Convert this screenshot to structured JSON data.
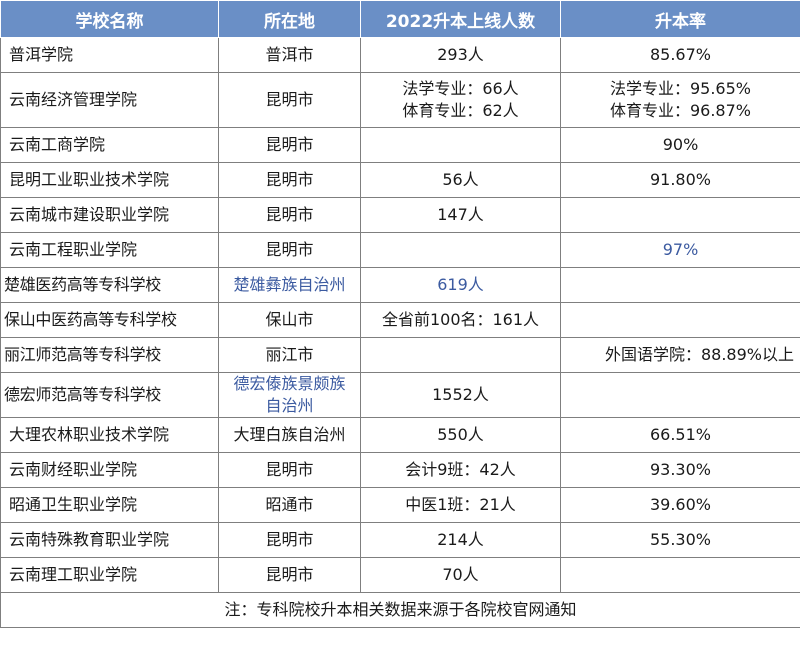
{
  "headers": [
    "学校名称",
    "所在地",
    "2022升本上线人数",
    "升本率"
  ],
  "rows": [
    {
      "school": "普洱学院",
      "location": "普洱市",
      "count": "293人",
      "rate": "85.67%"
    },
    {
      "school": "云南经济管理学院",
      "location": "昆明市",
      "count_lines": [
        "法学专业：66人",
        "体育专业：62人"
      ],
      "rate_lines": [
        "法学专业：95.65%",
        "体育专业：96.87%"
      ]
    },
    {
      "school": "云南工商学院",
      "location": "昆明市",
      "count": "",
      "rate": "90%"
    },
    {
      "school": "昆明工业职业技术学院",
      "location": "昆明市",
      "count": "56人",
      "rate": "91.80%"
    },
    {
      "school": "云南城市建设职业学院",
      "location": "昆明市",
      "count": "147人",
      "rate": ""
    },
    {
      "school": "云南工程职业学院",
      "location": "昆明市",
      "count": "",
      "rate": "97%"
    },
    {
      "school": "楚雄医药高等专科学校",
      "location": "楚雄彝族自治州",
      "count": "619人",
      "rate": ""
    },
    {
      "school": "保山中医药高等专科学校",
      "location": "保山市",
      "count": "全省前100名：161人",
      "rate": ""
    },
    {
      "school": "丽江师范高等专科学校",
      "location": "丽江市",
      "count": "",
      "rate": "外国语学院：88.89%以上"
    },
    {
      "school": "德宏师范高等专科学校",
      "location_lines": [
        "德宏傣族景颇族",
        "自治州"
      ],
      "count": "1552人",
      "rate": ""
    },
    {
      "school": "大理农林职业技术学院",
      "location": "大理白族自治州",
      "count": "550人",
      "rate": "66.51%"
    },
    {
      "school": "云南财经职业学院",
      "location": "昆明市",
      "count": "会计9班：42人",
      "rate": "93.30%"
    },
    {
      "school": "昭通卫生职业学院",
      "location": "昭通市",
      "count": "中医1班：21人",
      "rate": "39.60%"
    },
    {
      "school": "云南特殊教育职业学院",
      "location": "昆明市",
      "count": "214人",
      "rate": "55.30%"
    },
    {
      "school": "云南理工职业学院",
      "location": "昆明市",
      "count": "70人",
      "rate": ""
    }
  ],
  "footer": "注：专科院校升本相关数据来源于各院校官网通知",
  "colors": {
    "header_bg": "#6a8fc6",
    "header_text": "#ffffff",
    "border": "#7f7f7f",
    "watermark_text": "#3b5aa0"
  }
}
